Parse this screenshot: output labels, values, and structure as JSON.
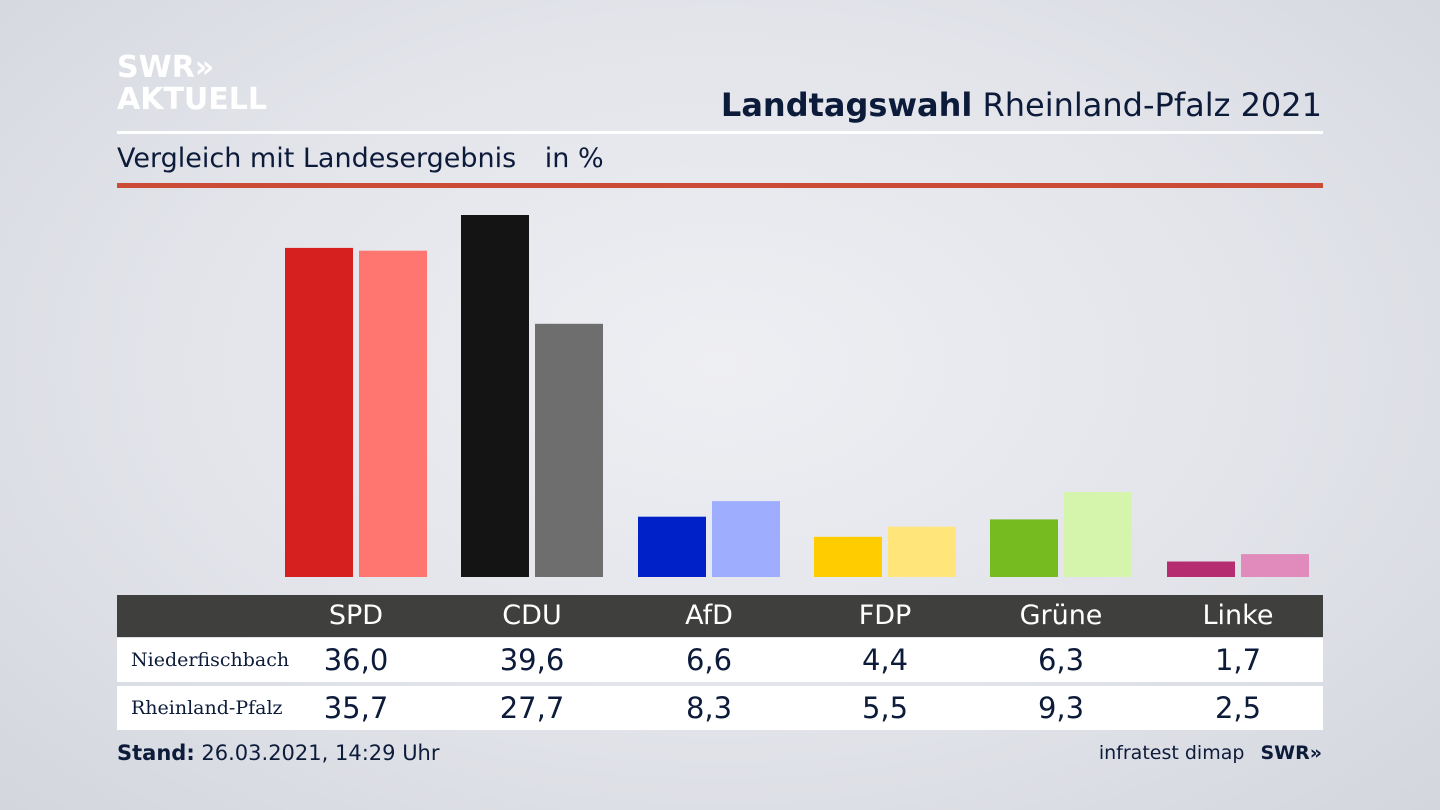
{
  "branding": {
    "logo_line1": "SWR»",
    "logo_line2": "AKTUELL",
    "source": "infratest dimap",
    "footer_logo": "SWR»"
  },
  "header": {
    "title_bold": "Landtagswahl",
    "title_rest": "Rheinland-Pfalz 2021",
    "subtitle": "Vergleich mit Landesergebnis",
    "unit": "in %"
  },
  "footer": {
    "stand_label": "Stand:",
    "stand_value": "26.03.2021, 14:29 Uhr"
  },
  "colors": {
    "accent_rule": "#cc4b37",
    "table_header": "#3f3f3e"
  },
  "chart_data": {
    "type": "bar",
    "categories": [
      "SPD",
      "CDU",
      "AfD",
      "FDP",
      "Grüne",
      "Linke"
    ],
    "series": [
      {
        "name": "Niederfischbach",
        "values": [
          36.0,
          39.6,
          6.6,
          4.4,
          6.3,
          1.7
        ],
        "labels": [
          "36,0",
          "39,6",
          "6,6",
          "4,4",
          "6,3",
          "1,7"
        ],
        "colors": [
          "#d61f1f",
          "#141414",
          "#0020c8",
          "#ffcc00",
          "#76bb1f",
          "#b52d70"
        ]
      },
      {
        "name": "Rheinland-Pfalz",
        "values": [
          35.7,
          27.7,
          8.3,
          5.5,
          9.3,
          2.5
        ],
        "labels": [
          "35,7",
          "27,7",
          "8,3",
          "5,5",
          "9,3",
          "2,5"
        ],
        "colors": [
          "#ff7570",
          "#6e6e6e",
          "#9fadff",
          "#ffe57a",
          "#d4f5ab",
          "#e08bbb"
        ]
      }
    ],
    "ylim": [
      0,
      40
    ],
    "grid": false,
    "legend": "table-below"
  }
}
